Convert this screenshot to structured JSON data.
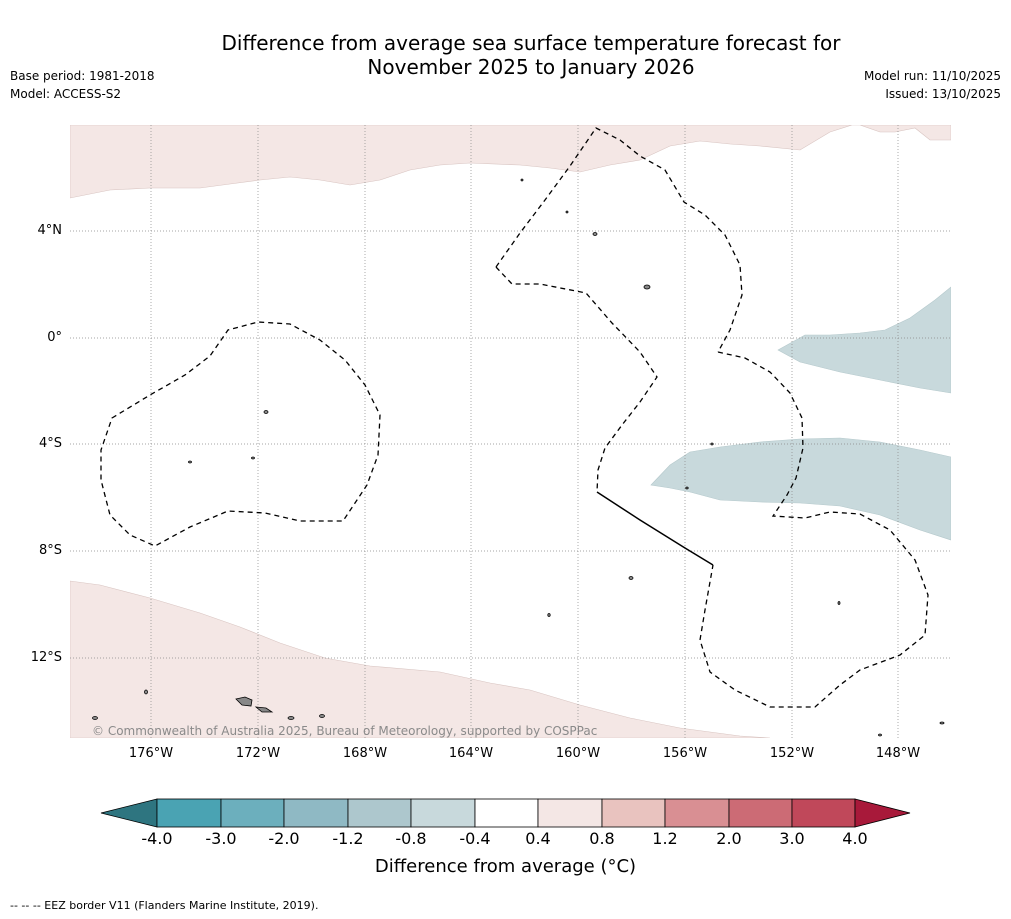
{
  "title_line1": "Difference from average sea surface temperature forecast for",
  "title_line2": "November 2025 to January 2026",
  "base_period": "Base period: 1981-2018",
  "model": "Model: ACCESS-S2",
  "model_run": "Model run: 11/10/2025",
  "issued": "Issued: 13/10/2025",
  "lat_labels": [
    "4°N",
    "0°",
    "4°S",
    "8°S",
    "12°S"
  ],
  "lon_labels": [
    "176°W",
    "172°W",
    "168°W",
    "164°W",
    "160°W",
    "156°W",
    "152°W",
    "148°W"
  ],
  "copyright": "© Commonwealth of Australia 2025, Bureau of Meteorology, supported by COSPPac",
  "colorbar": {
    "ticks": [
      "-4.0",
      "-3.0",
      "-2.0",
      "-1.2",
      "-0.8",
      "-0.4",
      "0.4",
      "0.8",
      "1.2",
      "2.0",
      "3.0",
      "4.0"
    ],
    "colors": [
      "#2e7580",
      "#4aa3b3",
      "#6cafbd",
      "#8fb9c4",
      "#adc7cd",
      "#c8d9dc",
      "#ffffff",
      "#f4e7e5",
      "#e9c3bf",
      "#d98f93",
      "#cc6b75",
      "#c0485a",
      "#a8193a"
    ],
    "title": "Difference from average (°C)"
  },
  "footnote": "--  --  -- EEZ border V11 (Flanders Marine Institute, 2019).",
  "colors": {
    "warm_anomaly": "#f4e7e5",
    "cool_anomaly": "#c8d9dc",
    "grid": "#888888"
  }
}
